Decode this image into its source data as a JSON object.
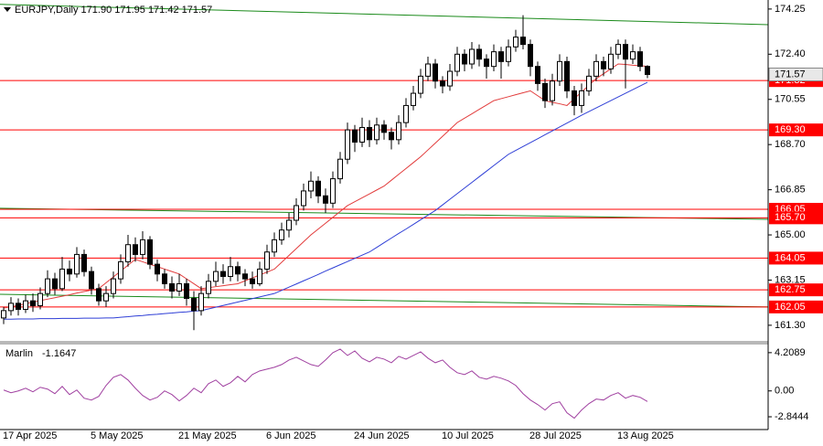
{
  "chart_data": {
    "type": "candlestick",
    "title": "EURJPY,Daily 171.90 171.95 171.42 171.57",
    "categories": [
      "17 Apr 2025",
      null,
      null,
      null,
      null,
      null,
      null,
      null,
      null,
      null,
      null,
      null,
      "5 May 2025",
      null,
      null,
      null,
      null,
      null,
      null,
      null,
      null,
      null,
      null,
      null,
      "21 May 2025",
      null,
      null,
      null,
      null,
      null,
      null,
      null,
      null,
      null,
      null,
      null,
      "6 Jun 2025",
      null,
      null,
      null,
      null,
      null,
      null,
      null,
      null,
      null,
      null,
      null,
      "24 Jun 2025",
      null,
      null,
      null,
      null,
      null,
      null,
      null,
      null,
      null,
      null,
      null,
      "10 Jul 2025",
      null,
      null,
      null,
      null,
      null,
      null,
      null,
      null,
      null,
      null,
      null,
      "28 Jul 2025",
      null,
      null,
      null,
      null,
      null,
      null,
      null,
      null,
      null,
      null,
      null,
      "13 Aug 2025",
      null,
      null,
      null,
      null
    ],
    "ohlc": [
      [
        161.6,
        162.05,
        161.35,
        161.9
      ],
      [
        161.9,
        162.45,
        161.7,
        162.2
      ],
      [
        162.2,
        162.4,
        161.7,
        161.95
      ],
      [
        161.95,
        162.55,
        161.8,
        162.3
      ],
      [
        162.3,
        162.6,
        161.85,
        162.1
      ],
      [
        162.1,
        162.85,
        161.95,
        162.6
      ],
      [
        162.6,
        163.55,
        162.45,
        163.2
      ],
      [
        163.2,
        163.45,
        162.55,
        162.8
      ],
      [
        162.8,
        164.1,
        162.7,
        163.6
      ],
      [
        163.6,
        163.95,
        163.1,
        163.4
      ],
      [
        163.4,
        164.5,
        163.25,
        164.2
      ],
      [
        164.2,
        164.4,
        163.3,
        163.5
      ],
      [
        163.5,
        163.7,
        162.55,
        162.8
      ],
      [
        162.8,
        163.0,
        162.1,
        162.3
      ],
      [
        162.3,
        162.9,
        162.05,
        162.6
      ],
      [
        162.6,
        163.5,
        162.4,
        163.2
      ],
      [
        163.2,
        164.2,
        163.0,
        163.9
      ],
      [
        163.9,
        165.0,
        163.7,
        164.6
      ],
      [
        164.6,
        164.9,
        163.9,
        164.2
      ],
      [
        164.2,
        165.15,
        164.0,
        164.8
      ],
      [
        164.8,
        164.95,
        163.6,
        163.8
      ],
      [
        163.8,
        164.0,
        163.1,
        163.4
      ],
      [
        163.4,
        163.6,
        162.8,
        163.0
      ],
      [
        163.0,
        163.3,
        162.4,
        162.7
      ],
      [
        162.7,
        163.4,
        162.5,
        163.0
      ],
      [
        163.0,
        163.2,
        162.1,
        162.4
      ],
      [
        162.4,
        162.7,
        161.1,
        161.9
      ],
      [
        161.9,
        162.9,
        161.7,
        162.6
      ],
      [
        162.6,
        163.4,
        162.4,
        163.1
      ],
      [
        163.1,
        163.9,
        162.9,
        163.5
      ],
      [
        163.5,
        163.8,
        163.0,
        163.3
      ],
      [
        163.3,
        164.1,
        163.1,
        163.7
      ],
      [
        163.7,
        163.9,
        163.1,
        163.4
      ],
      [
        163.4,
        163.6,
        162.9,
        163.2
      ],
      [
        163.2,
        163.5,
        162.8,
        163.0
      ],
      [
        163.0,
        163.9,
        162.9,
        163.6
      ],
      [
        163.6,
        164.6,
        163.4,
        164.3
      ],
      [
        164.3,
        165.1,
        164.1,
        164.8
      ],
      [
        164.8,
        165.5,
        164.6,
        165.2
      ],
      [
        165.2,
        165.9,
        164.9,
        165.6
      ],
      [
        165.6,
        166.5,
        165.4,
        166.2
      ],
      [
        166.2,
        167.1,
        166.0,
        166.8
      ],
      [
        166.8,
        167.6,
        166.5,
        167.2
      ],
      [
        167.2,
        167.4,
        166.3,
        166.6
      ],
      [
        166.6,
        166.9,
        165.9,
        166.3
      ],
      [
        166.3,
        167.6,
        166.1,
        167.3
      ],
      [
        167.3,
        168.4,
        167.1,
        168.1
      ],
      [
        168.1,
        169.6,
        167.9,
        169.3
      ],
      [
        169.3,
        169.5,
        168.4,
        168.8
      ],
      [
        168.8,
        169.8,
        168.6,
        169.4
      ],
      [
        169.4,
        169.7,
        168.6,
        168.9
      ],
      [
        168.9,
        169.8,
        168.7,
        169.5
      ],
      [
        169.5,
        169.7,
        168.9,
        169.2
      ],
      [
        169.2,
        169.4,
        168.5,
        168.9
      ],
      [
        168.9,
        169.9,
        168.7,
        169.6
      ],
      [
        169.6,
        170.6,
        169.4,
        170.3
      ],
      [
        170.3,
        171.1,
        170.1,
        170.8
      ],
      [
        170.8,
        171.8,
        170.6,
        171.5
      ],
      [
        171.5,
        172.3,
        171.3,
        172.0
      ],
      [
        172.0,
        172.2,
        171.0,
        171.3
      ],
      [
        171.3,
        171.5,
        170.8,
        171.1
      ],
      [
        171.1,
        172.0,
        170.9,
        171.7
      ],
      [
        171.7,
        172.7,
        171.5,
        172.4
      ],
      [
        172.4,
        172.6,
        171.7,
        172.0
      ],
      [
        172.0,
        172.9,
        171.8,
        172.6
      ],
      [
        172.6,
        172.8,
        171.9,
        172.2
      ],
      [
        172.2,
        172.4,
        171.4,
        171.9
      ],
      [
        171.9,
        172.8,
        171.7,
        172.5
      ],
      [
        172.5,
        172.7,
        171.4,
        172.1
      ],
      [
        172.1,
        173.0,
        171.9,
        172.7
      ],
      [
        172.7,
        173.4,
        172.5,
        173.1
      ],
      [
        173.1,
        174.0,
        172.6,
        172.8
      ],
      [
        172.8,
        173.0,
        171.5,
        171.9
      ],
      [
        171.9,
        172.1,
        170.9,
        171.2
      ],
      [
        171.2,
        171.4,
        170.2,
        170.5
      ],
      [
        170.5,
        171.6,
        170.3,
        171.3
      ],
      [
        171.3,
        172.4,
        171.1,
        172.1
      ],
      [
        172.1,
        172.3,
        170.6,
        170.9
      ],
      [
        170.9,
        171.1,
        169.9,
        170.3
      ],
      [
        170.3,
        171.2,
        170.0,
        170.9
      ],
      [
        170.9,
        171.8,
        170.7,
        171.5
      ],
      [
        171.5,
        172.4,
        171.3,
        172.1
      ],
      [
        172.1,
        172.3,
        171.5,
        171.8
      ],
      [
        171.8,
        172.7,
        171.6,
        172.4
      ],
      [
        172.4,
        173.0,
        172.2,
        172.8
      ],
      [
        172.8,
        173.0,
        171.0,
        172.2
      ],
      [
        172.2,
        172.8,
        172.0,
        172.5
      ],
      [
        172.5,
        172.7,
        171.7,
        171.9
      ],
      [
        171.9,
        171.95,
        171.42,
        171.57
      ]
    ],
    "up_color": "#ffffff",
    "down_color": "#000000",
    "series": [
      {
        "color": "#e23c3c",
        "values": [
          162.0,
          162.06,
          162.12,
          162.18,
          162.25,
          162.31,
          162.37,
          162.43,
          162.49,
          162.55,
          162.62,
          162.68,
          162.74,
          162.8,
          163.04,
          163.28,
          163.52,
          163.76,
          164.0,
          163.9,
          163.8,
          163.7,
          163.6,
          163.5,
          163.4,
          163.2,
          163.0,
          162.8,
          162.84,
          162.88,
          162.92,
          162.96,
          163.0,
          163.12,
          163.24,
          163.36,
          163.48,
          163.6,
          163.88,
          164.16,
          164.44,
          164.72,
          165.0,
          165.24,
          165.48,
          165.72,
          165.96,
          166.2,
          166.36,
          166.52,
          166.68,
          166.84,
          167.0,
          167.24,
          167.48,
          167.72,
          167.96,
          168.2,
          168.48,
          168.76,
          169.04,
          169.32,
          169.6,
          169.78,
          169.96,
          170.14,
          170.32,
          170.5,
          170.58,
          170.66,
          170.74,
          170.82,
          170.9,
          170.7,
          170.5,
          170.43,
          170.37,
          170.3,
          170.58,
          170.85,
          171.13,
          171.4,
          171.6,
          171.8,
          172.0,
          171.98,
          171.95,
          171.93,
          171.9
        ]
      },
      {
        "color": "#2f3fd6",
        "values": [
          161.55,
          161.55,
          161.56,
          161.56,
          161.56,
          161.57,
          161.57,
          161.57,
          161.58,
          161.58,
          161.58,
          161.59,
          161.59,
          161.59,
          161.6,
          161.6,
          161.63,
          161.65,
          161.68,
          161.7,
          161.73,
          161.75,
          161.78,
          161.8,
          161.83,
          161.85,
          161.88,
          161.9,
          161.97,
          162.04,
          162.11,
          162.18,
          162.25,
          162.32,
          162.39,
          162.46,
          162.53,
          162.6,
          162.73,
          162.86,
          162.99,
          163.12,
          163.25,
          163.38,
          163.52,
          163.65,
          163.78,
          163.91,
          164.04,
          164.17,
          164.3,
          164.49,
          164.68,
          164.87,
          165.06,
          165.24,
          165.43,
          165.62,
          165.81,
          166.0,
          166.23,
          166.46,
          166.69,
          166.92,
          167.15,
          167.38,
          167.61,
          167.84,
          168.07,
          168.3,
          168.46,
          168.62,
          168.78,
          168.94,
          169.1,
          169.26,
          169.42,
          169.58,
          169.74,
          169.9,
          170.05,
          170.2,
          170.35,
          170.5,
          170.65,
          170.8,
          170.95,
          171.1,
          171.25
        ]
      }
    ],
    "ylim": [
      160.66,
      174.62
    ],
    "yticks": [
      174.25,
      {
        "value": 172.4,
        "label": "172.40"
      },
      170.55,
      {
        "value": 168.7,
        "label": "168.70"
      },
      166.85,
      {
        "value": 165,
        "label": "165.00"
      },
      163.15,
      {
        "value": 161.3,
        "label": "161.30"
      }
    ],
    "levels": [
      171.32,
      {
        "value": 169.3,
        "label": "169.30"
      },
      166.05,
      {
        "value": 165.7,
        "label": "165.70"
      },
      164.05,
      162.75,
      162.05
    ],
    "level_color": "#ff0000",
    "trendlines": [
      {
        "color": "#1a8a1a",
        "values": [
          174.44,
          173.61
        ]
      },
      {
        "color": "#1a8a1a",
        "values": [
          166.09,
          165.64
        ]
      },
      {
        "color": "#1a8a1a",
        "values": [
          162.57,
          162.05
        ]
      }
    ],
    "current_price": 171.57,
    "indicator": {
      "type": "line",
      "title": "Marlin",
      "color": "#a040a0",
      "values": [
        0.1,
        -0.2,
        0.0,
        0.3,
        -0.1,
        0.4,
        0.2,
        -0.3,
        0.5,
        -0.4,
        0.1,
        -0.8,
        -1.0,
        -0.6,
        0.6,
        1.5,
        1.8,
        1.2,
        0.3,
        -0.5,
        -1.0,
        -0.7,
        0.0,
        -0.4,
        -1.1,
        -0.5,
        0.3,
        -0.2,
        0.8,
        1.2,
        0.5,
        0.9,
        1.6,
        1.0,
        1.8,
        2.2,
        2.4,
        2.6,
        2.9,
        3.4,
        3.7,
        3.3,
        2.9,
        2.7,
        3.4,
        4.2,
        4.6,
        3.9,
        4.4,
        3.6,
        3.2,
        3.7,
        3.5,
        3.1,
        3.8,
        3.5,
        3.9,
        4.3,
        3.6,
        3.1,
        3.4,
        2.6,
        2.0,
        1.8,
        2.2,
        1.5,
        1.3,
        1.6,
        1.4,
        1.1,
        0.6,
        -0.3,
        -1.0,
        -1.5,
        -2.1,
        -1.4,
        -1.2,
        -2.4,
        -3.0,
        -2.1,
        -1.4,
        -0.9,
        -1.0,
        -0.5,
        -0.2,
        -0.8,
        -0.5,
        -0.7,
        -1.1647
      ],
      "ylim": [
        -4.25,
        5.0
      ],
      "yticks": [
        4.2089,
        {
          "value": 0,
          "label": "0.00"
        },
        -2.8444
      ]
    }
  }
}
